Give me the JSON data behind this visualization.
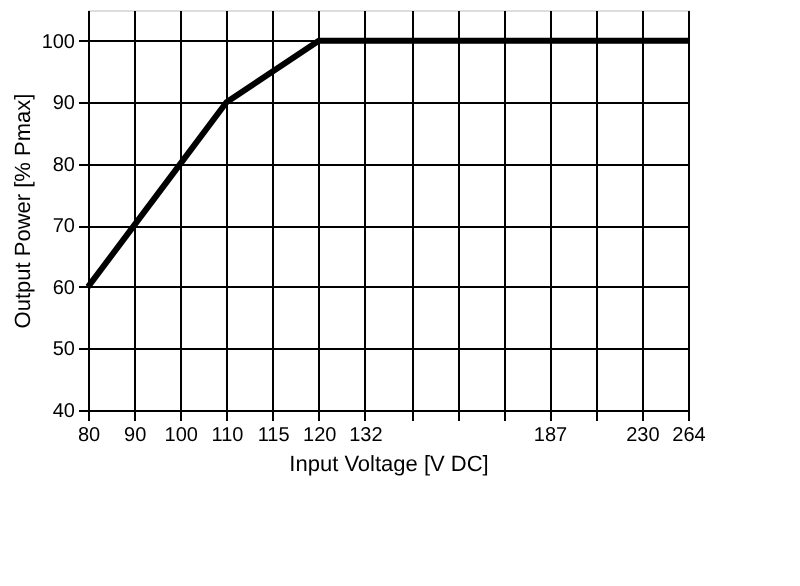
{
  "chart_data": {
    "type": "line",
    "xlabel": "Input Voltage [V DC]",
    "ylabel": "Output Power [% Pmax]",
    "categories": [
      "80",
      "90",
      "100",
      "110",
      "115",
      "120",
      "132",
      null,
      null,
      null,
      "187",
      null,
      "230",
      "264"
    ],
    "series": [
      {
        "color": "#000000",
        "values": [
          60,
          70,
          80,
          90,
          95,
          100,
          100,
          100,
          100,
          100,
          100,
          100,
          100,
          100
        ]
      }
    ],
    "ylim": [
      40,
      105
    ],
    "yticks": [
      40,
      50,
      60,
      70,
      80,
      90,
      100
    ],
    "grid": true,
    "marker": "none",
    "line_style": "solid"
  }
}
